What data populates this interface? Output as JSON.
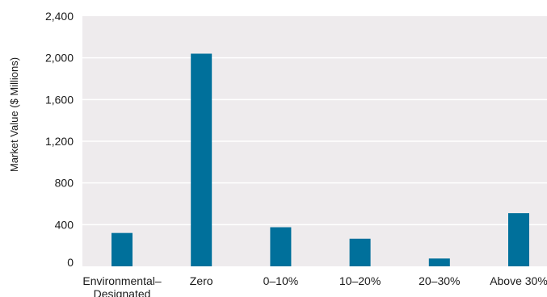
{
  "chart_data": {
    "type": "bar",
    "title": "",
    "xlabel": "",
    "ylabel": "Market Value ($ Millions)",
    "categories": [
      "Environmental-Designated",
      "Zero",
      "0–10%",
      "10–20%",
      "20–30%",
      "Above 30%"
    ],
    "category_labels": [
      [
        "Environmental–",
        "Designated"
      ],
      [
        "Zero"
      ],
      [
        "0–10%"
      ],
      [
        "10–20%"
      ],
      [
        "20–30%"
      ],
      [
        "Above 30%"
      ]
    ],
    "values": [
      320,
      2040,
      375,
      265,
      75,
      510
    ],
    "ylim": [
      0,
      2400
    ],
    "yticks": [
      0,
      400,
      800,
      1200,
      1600,
      2000,
      2400
    ],
    "ytick_labels": [
      "0",
      "400",
      "800",
      "1,200",
      "1,600",
      "2,000",
      "2,400"
    ],
    "grid": true,
    "colors": {
      "bar": "#00709b",
      "plot_background": "#eeebed",
      "grid": "#ffffff"
    }
  }
}
